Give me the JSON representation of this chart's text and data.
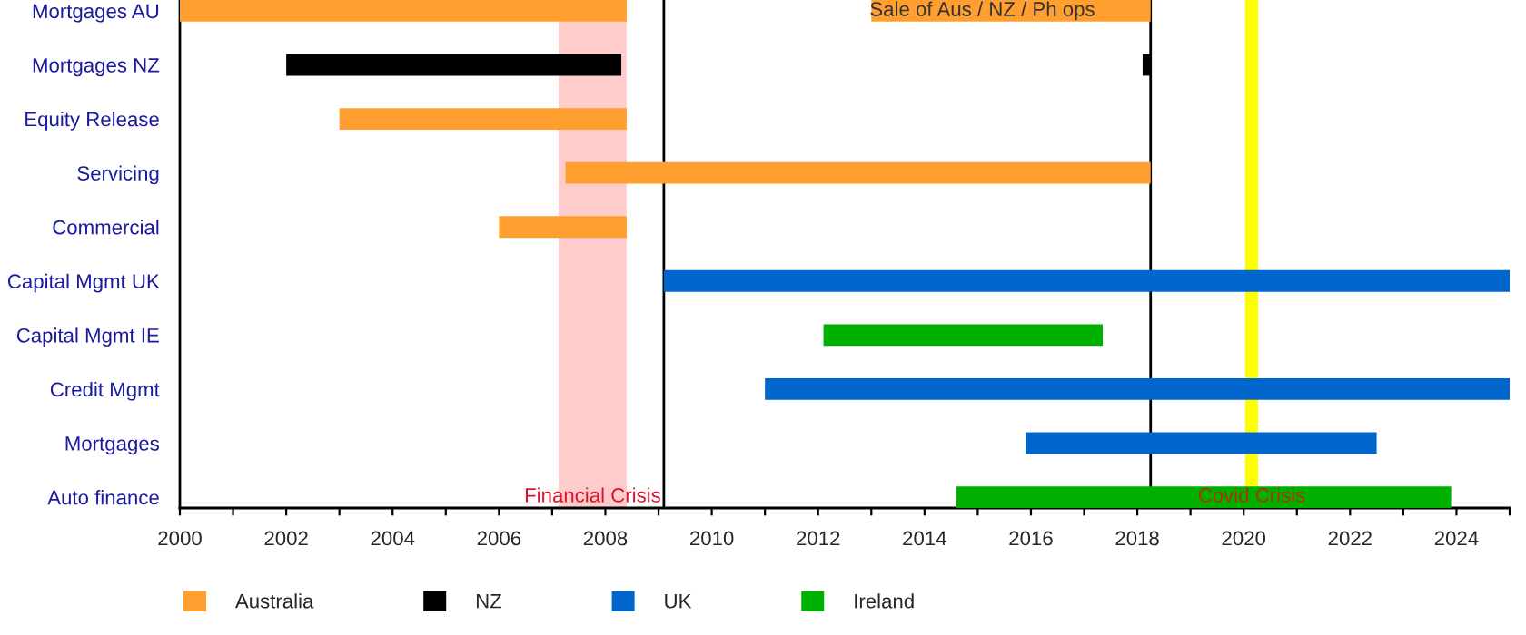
{
  "chart_data": {
    "type": "bar",
    "orientation": "horizontal",
    "categories": [
      "Mortgages AU",
      "Mortgages NZ",
      "Equity Release",
      "Servicing",
      "Commercial",
      "Capital Mgmt UK",
      "Capital Mgmt IE",
      "Credit Mgmt",
      "Mortgages",
      "Auto finance"
    ],
    "series": [
      {
        "name": "Australia",
        "color": "#ff9f2f",
        "base": [
          2000,
          null,
          2003,
          2007.25,
          2006,
          null,
          null,
          null,
          null,
          null
        ],
        "values": [
          8.4,
          null,
          5.4,
          11,
          2.4,
          null,
          null,
          null,
          null,
          null
        ]
      },
      {
        "name": "NZ",
        "color": "#000000",
        "base": [
          null,
          2002,
          null,
          null,
          null,
          null,
          null,
          null,
          null,
          null
        ],
        "values": [
          null,
          6.3,
          null,
          null,
          null,
          null,
          null,
          null,
          null,
          null
        ]
      },
      {
        "name": "UK",
        "color": "#0066cc",
        "base": [
          null,
          null,
          null,
          null,
          null,
          2009.1,
          null,
          2011,
          2015.9,
          null
        ],
        "values": [
          null,
          null,
          null,
          null,
          null,
          15.9,
          null,
          14,
          6.6,
          null
        ]
      },
      {
        "name": "Ireland",
        "color": "#00b000",
        "base": [
          null,
          null,
          null,
          null,
          null,
          null,
          2012.1,
          null,
          null,
          2014.6
        ],
        "values": [
          null,
          null,
          null,
          null,
          null,
          null,
          5.25,
          null,
          null,
          9.3
        ]
      },
      {
        "color": "#ff9f2f",
        "base": [
          2013,
          null,
          null,
          null,
          null,
          null,
          null,
          null,
          null,
          null
        ],
        "values": [
          5.25,
          null,
          null,
          null,
          null,
          null,
          null,
          null,
          null,
          null
        ]
      },
      {
        "color": "#000000",
        "base": [
          null,
          2018.1,
          null,
          null,
          null,
          null,
          null,
          null,
          null,
          null
        ],
        "values": [
          null,
          0.15,
          null,
          null,
          null,
          null,
          null,
          null,
          null,
          null
        ]
      }
    ],
    "xlim": [
      2000,
      2025
    ],
    "xticks": [
      2000,
      {
        "value": 2001,
        "label": null
      },
      2002,
      {
        "value": 2003,
        "label": null
      },
      2004,
      {
        "value": 2005,
        "label": null
      },
      2006,
      {
        "value": 2007,
        "label": null
      },
      2008,
      {
        "value": 2009,
        "label": null
      },
      2010,
      {
        "value": 2011,
        "label": null
      },
      2012,
      {
        "value": 2013,
        "label": null
      },
      2014,
      {
        "value": 2015,
        "label": null
      },
      2016,
      {
        "value": 2017,
        "label": null
      },
      2018,
      {
        "value": 2019,
        "label": null
      },
      2020,
      {
        "value": 2021,
        "label": null
      },
      2022,
      {
        "value": 2023,
        "label": null
      },
      2024,
      {
        "value": 2025,
        "label": null
      }
    ],
    "bands": [
      {
        "axis": "x",
        "from": 2007.12,
        "to": 2008.4,
        "label": "Financial Crisis",
        "color": "#ffcccc"
      },
      {
        "axis": "x",
        "from": 2020.03,
        "to": 2020.27,
        "label": "Covid Crisis",
        "color": "#ffff00"
      }
    ],
    "ref_lines": [
      {
        "axis": "x",
        "value": 2009.1,
        "color": "#000000",
        "line_style": "solid"
      },
      {
        "axis": "x",
        "value": 2018.25,
        "color": "#000000",
        "line_style": "solid"
      }
    ],
    "annotations": [
      {
        "text": "Sale of Aus / NZ / Ph ops",
        "x": 2018.25,
        "y": "Mortgages AU"
      }
    ],
    "legend": "bottom",
    "grid": false
  }
}
